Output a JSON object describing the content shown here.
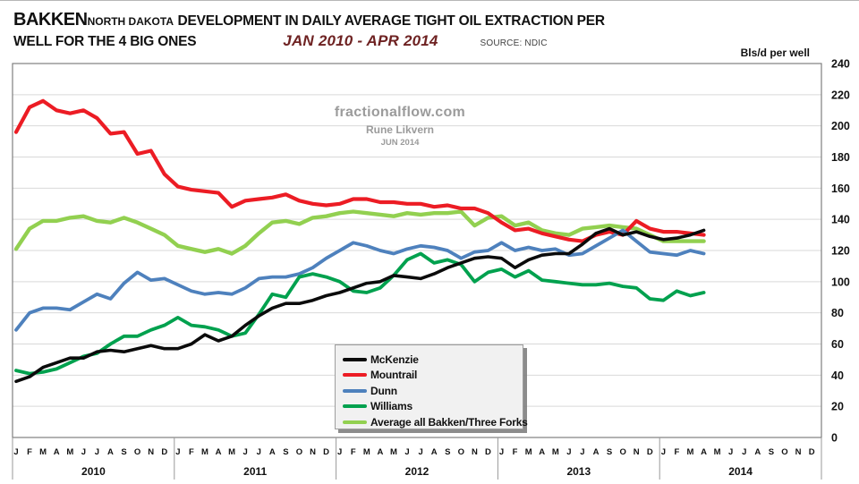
{
  "header": {
    "title_word": "BAKKEN",
    "title_region": "NORTH DAKOTA",
    "title_rest": "DEVELOPMENT IN DAILY AVERAGE TIGHT OIL EXTRACTION PER",
    "title_line2": "WELL FOR THE 4 BIG ONES",
    "period": "JAN 2010 - APR 2014",
    "source": "SOURCE: NDIC"
  },
  "watermark": {
    "site": "fractionalflow.com",
    "author": "Rune Likvern",
    "date": "JUN 2014"
  },
  "chart_data": {
    "type": "line",
    "title": "BAKKEN NORTH DAKOTA DEVELOPMENT IN DAILY AVERAGE TIGHT OIL EXTRACTION PER WELL FOR THE 4 BIG ONES, JAN 2010 - APR 2014",
    "unit_label": "Bls/d  per well",
    "ylim": [
      0,
      240
    ],
    "ytick_step": 20,
    "grid": true,
    "legend_position": "bottom-center-box",
    "x_months": [
      "J",
      "F",
      "M",
      "A",
      "M",
      "J",
      "J",
      "A",
      "S",
      "O",
      "N",
      "D"
    ],
    "x_years": [
      "2010",
      "2011",
      "2012",
      "2013",
      "2014"
    ],
    "x_note": "monthly data Jan 2010 - Apr 2014 (52 points); axis extends through Dec 2014",
    "axis_colors": {
      "gridline": "#d9d9d9",
      "border": "#7f7f7f",
      "separator": "#9a9a9a",
      "text": "#111111"
    },
    "series": [
      {
        "name": "McKenzie",
        "color": "#0b0b0b",
        "width": 3.6,
        "values": [
          36,
          39,
          45,
          48,
          51,
          51,
          55,
          56,
          55,
          57,
          59,
          57,
          57,
          60,
          66,
          62,
          65,
          72,
          78,
          83,
          86,
          86,
          88,
          91,
          93,
          96,
          99,
          100,
          104,
          103,
          102,
          105,
          109,
          112,
          115,
          116,
          115,
          109,
          114,
          117,
          118,
          118,
          124,
          131,
          134,
          130,
          132,
          129,
          127,
          128,
          130,
          133
        ]
      },
      {
        "name": "Mountrail",
        "color": "#ec1c24",
        "width": 4.2,
        "values": [
          196,
          212,
          216,
          210,
          208,
          210,
          205,
          195,
          196,
          182,
          184,
          169,
          161,
          159,
          158,
          157,
          148,
          152,
          153,
          154,
          156,
          152,
          150,
          149,
          150,
          153,
          153,
          151,
          151,
          150,
          150,
          148,
          149,
          147,
          147,
          144,
          138,
          133,
          134,
          131,
          129,
          127,
          126,
          130,
          132,
          130,
          139,
          134,
          132,
          132,
          131,
          130
        ]
      },
      {
        "name": "Dunn",
        "color": "#4e81bd",
        "width": 3.8,
        "values": [
          69,
          80,
          83,
          83,
          82,
          87,
          92,
          89,
          99,
          106,
          101,
          102,
          98,
          94,
          92,
          93,
          92,
          96,
          102,
          103,
          103,
          105,
          109,
          115,
          120,
          125,
          123,
          120,
          118,
          121,
          123,
          122,
          120,
          115,
          119,
          120,
          125,
          120,
          122,
          120,
          121,
          117,
          118,
          123,
          128,
          133,
          126,
          119,
          118,
          117,
          120,
          118
        ]
      },
      {
        "name": "Williams",
        "color": "#00a14e",
        "width": 3.8,
        "values": [
          43,
          41,
          42,
          44,
          48,
          52,
          54,
          60,
          65,
          65,
          69,
          72,
          77,
          72,
          71,
          69,
          65,
          67,
          79,
          92,
          90,
          103,
          105,
          103,
          100,
          94,
          93,
          96,
          104,
          114,
          118,
          112,
          114,
          111,
          100,
          106,
          108,
          103,
          107,
          101,
          100,
          99,
          98,
          98,
          99,
          97,
          96,
          89,
          88,
          94,
          91,
          93
        ]
      },
      {
        "name": "Average all Bakken/Three Forks",
        "color": "#92d050",
        "width": 4.4,
        "values": [
          121,
          134,
          139,
          139,
          141,
          142,
          139,
          138,
          141,
          138,
          134,
          130,
          123,
          121,
          119,
          121,
          118,
          123,
          131,
          138,
          139,
          137,
          141,
          142,
          144,
          145,
          144,
          143,
          142,
          144,
          143,
          144,
          144,
          145,
          136,
          141,
          142,
          136,
          138,
          133,
          131,
          130,
          134,
          135,
          136,
          135,
          134,
          130,
          126,
          126,
          126,
          126
        ]
      }
    ]
  }
}
